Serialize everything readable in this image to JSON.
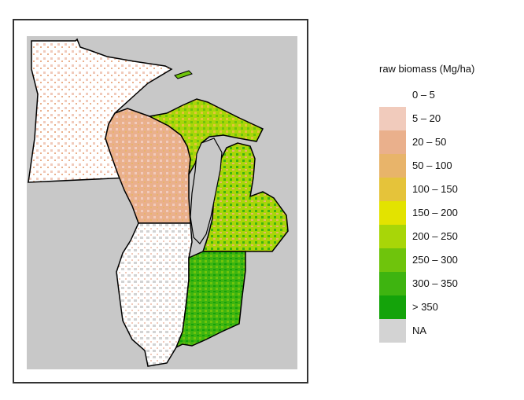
{
  "legend": {
    "title": "raw biomass (Mg/ha)",
    "classes": [
      {
        "label": "0 – 5",
        "color": "#ffffff"
      },
      {
        "label": "5 – 20",
        "color": "#f1cbbc"
      },
      {
        "label": "20 – 50",
        "color": "#eab08c"
      },
      {
        "label": "50 – 100",
        "color": "#e8b46a"
      },
      {
        "label": "100 – 150",
        "color": "#e5c33a"
      },
      {
        "label": "150 – 200",
        "color": "#e3e300"
      },
      {
        "label": "200 – 250",
        "color": "#a8d608"
      },
      {
        "label": "250 – 300",
        "color": "#6fc40c"
      },
      {
        "label": "300 – 350",
        "color": "#3eb410"
      },
      {
        "label": "> 350",
        "color": "#14a30a"
      },
      {
        "label": "NA",
        "color": "#d3d3d3"
      }
    ]
  },
  "map": {
    "background_color": "#c8c8c8",
    "border_color": "#000000",
    "states": [
      "minnesota",
      "wisconsin",
      "michigan-upper-peninsula",
      "michigan-lower-peninsula",
      "illinois",
      "indiana"
    ]
  }
}
